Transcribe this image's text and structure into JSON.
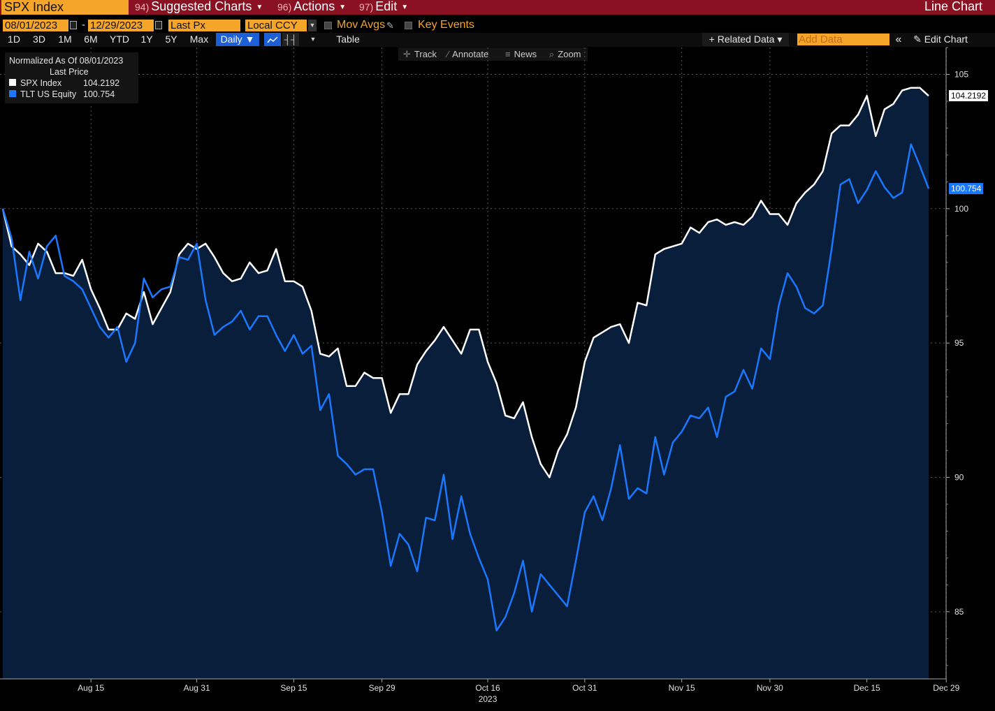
{
  "header": {
    "ticker": "SPX Index",
    "menu": [
      {
        "num": "94)",
        "label": "Suggested Charts"
      },
      {
        "num": "96)",
        "label": "Actions"
      },
      {
        "num": "97)",
        "label": "Edit"
      }
    ],
    "chart_title": "Line Chart"
  },
  "controls": {
    "start_date": "08/01/2023",
    "end_date": "12/29/2023",
    "dash": "-",
    "field": "Last Px",
    "currency": "Local CCY",
    "mov_avgs": "Mov Avgs",
    "key_events": "Key Events",
    "ranges": [
      "1D",
      "3D",
      "1M",
      "6M",
      "YTD",
      "1Y",
      "5Y",
      "Max"
    ],
    "frequency": "Daily ▼",
    "table": "Table",
    "related_data": "+ Related Data ▾",
    "add_data_placeholder": "Add Data",
    "collapse": "«",
    "edit_chart": "Edit Chart"
  },
  "tools": {
    "track": "Track",
    "annotate": "Annotate",
    "news": "News",
    "zoom": "Zoom"
  },
  "legend": {
    "title": "Normalized As Of 08/01/2023",
    "subtitle": "Last Price",
    "items": [
      {
        "name": "SPX Index",
        "value": "104.2192",
        "color": "#ffffff"
      },
      {
        "name": "TLT US Equity",
        "value": "100.754",
        "color": "#1a78ff"
      }
    ]
  },
  "chart_data": {
    "type": "line",
    "title": "Line Chart",
    "ylim": [
      82.5,
      106
    ],
    "yticks": [
      85,
      90,
      95,
      100,
      105
    ],
    "x_tick_labels": [
      "Aug 15",
      "Aug 31",
      "Sep 15",
      "Sep 29",
      "Oct 16",
      "Oct 31",
      "Nov 15",
      "Nov 30",
      "Dec 15",
      "Dec 29"
    ],
    "x_tick_index": [
      10,
      22,
      33,
      43,
      55,
      66,
      77,
      87,
      98,
      107
    ],
    "x_sub_label": "2023",
    "grid": true,
    "legend_position": "top-left",
    "series": [
      {
        "name": "SPX Index",
        "color": "#ffffff",
        "last_label": "104.2192",
        "values": [
          100.0,
          98.6,
          98.3,
          97.9,
          98.7,
          98.4,
          97.6,
          97.6,
          97.5,
          98.1,
          97.0,
          96.3,
          95.5,
          95.5,
          96.1,
          95.9,
          96.9,
          95.7,
          96.3,
          96.9,
          98.3,
          98.7,
          98.5,
          98.7,
          98.2,
          97.6,
          97.3,
          97.4,
          98.0,
          97.6,
          97.7,
          98.5,
          97.3,
          97.3,
          97.1,
          96.2,
          94.6,
          94.5,
          94.8,
          93.4,
          93.4,
          93.9,
          93.7,
          93.7,
          92.4,
          93.1,
          93.1,
          94.2,
          94.7,
          95.1,
          95.6,
          95.1,
          94.6,
          95.5,
          95.5,
          94.3,
          93.5,
          92.3,
          92.2,
          92.8,
          91.5,
          90.5,
          90.0,
          91.0,
          91.6,
          92.6,
          94.3,
          95.2,
          95.4,
          95.6,
          95.7,
          95.0,
          96.5,
          96.4,
          98.3,
          98.5,
          98.6,
          98.7,
          99.3,
          99.1,
          99.5,
          99.6,
          99.4,
          99.5,
          99.4,
          99.7,
          100.3,
          99.8,
          99.8,
          99.4,
          100.2,
          100.6,
          100.9,
          101.4,
          102.8,
          103.1,
          103.1,
          103.5,
          104.2,
          102.7,
          103.7,
          103.9,
          104.4,
          104.5,
          104.5,
          104.2
        ]
      },
      {
        "name": "TLT US Equity",
        "color": "#1a78ff",
        "last_label": "100.754",
        "values": [
          100.0,
          98.9,
          96.6,
          98.4,
          97.4,
          98.6,
          99.0,
          97.5,
          97.3,
          97.0,
          96.3,
          95.6,
          95.2,
          95.6,
          94.3,
          95.0,
          97.4,
          96.7,
          97.0,
          97.1,
          98.2,
          98.1,
          98.7,
          96.6,
          95.3,
          95.6,
          95.8,
          96.2,
          95.5,
          96.0,
          96.0,
          95.3,
          94.7,
          95.3,
          94.6,
          94.9,
          92.5,
          93.1,
          90.8,
          90.5,
          90.1,
          90.3,
          90.3,
          88.7,
          86.7,
          87.9,
          87.5,
          86.5,
          88.5,
          88.4,
          90.1,
          87.7,
          89.3,
          87.9,
          87.0,
          86.2,
          84.3,
          84.8,
          85.7,
          86.9,
          85.0,
          86.4,
          86.0,
          85.6,
          85.2,
          86.9,
          88.7,
          89.3,
          88.4,
          89.6,
          91.2,
          89.2,
          89.6,
          89.4,
          91.5,
          90.1,
          91.3,
          91.7,
          92.3,
          92.2,
          92.6,
          91.5,
          93.0,
          93.2,
          94.0,
          93.3,
          94.8,
          94.4,
          96.4,
          97.6,
          97.1,
          96.3,
          96.1,
          96.4,
          98.5,
          100.9,
          101.1,
          100.2,
          100.7,
          101.4,
          100.8,
          100.4,
          100.6,
          102.4,
          101.6,
          100.75
        ]
      }
    ]
  }
}
